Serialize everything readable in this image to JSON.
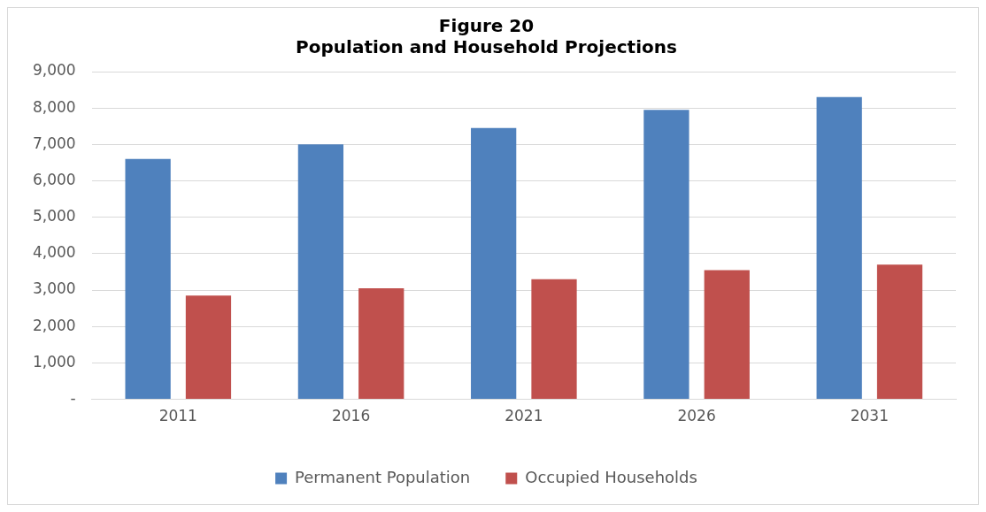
{
  "chart_data": {
    "type": "bar",
    "title": "Figure 20",
    "subtitle": "Population and Household Projections",
    "categories": [
      "2011",
      "2016",
      "2021",
      "2026",
      "2031"
    ],
    "series": [
      {
        "name": "Permanent Population",
        "color": "#4f81bd",
        "values": [
          6600,
          7000,
          7450,
          7950,
          8300
        ]
      },
      {
        "name": "Occupied Households",
        "color": "#c0504d",
        "values": [
          2850,
          3050,
          3300,
          3550,
          3700
        ]
      }
    ],
    "ylim": [
      0,
      9000
    ],
    "yticks": [
      {
        "value": 0,
        "label": "-"
      },
      {
        "value": 1000,
        "label": "1,000"
      },
      {
        "value": 2000,
        "label": "2,000"
      },
      {
        "value": 3000,
        "label": "3,000"
      },
      {
        "value": 4000,
        "label": "4,000"
      },
      {
        "value": 5000,
        "label": "5,000"
      },
      {
        "value": 6000,
        "label": "6,000"
      },
      {
        "value": 7000,
        "label": "7,000"
      },
      {
        "value": 8000,
        "label": "8,000"
      },
      {
        "value": 9000,
        "label": "9,000"
      }
    ],
    "grid": "y",
    "legend": "bottom"
  }
}
